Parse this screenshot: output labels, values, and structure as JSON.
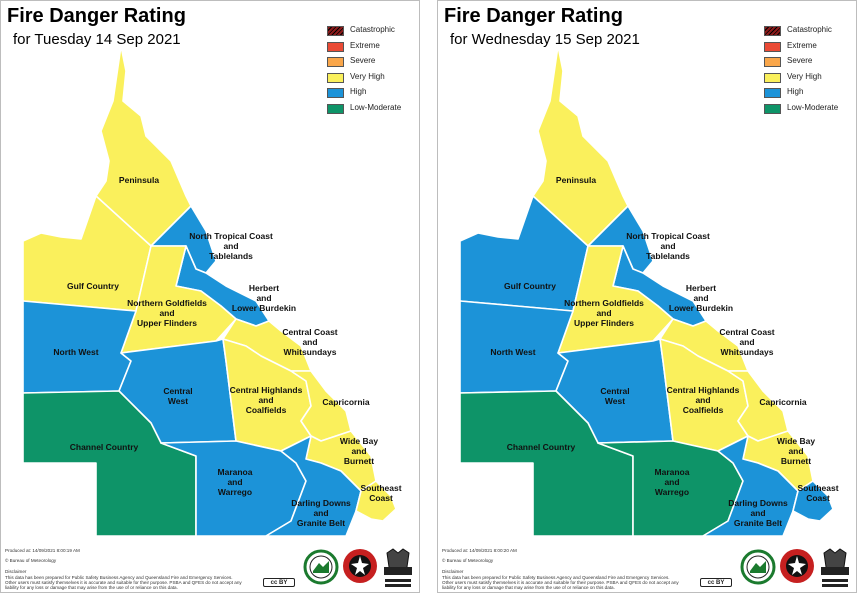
{
  "legend": [
    {
      "label": "Catastrophic",
      "color": "#8b1a1a",
      "hatched": true
    },
    {
      "label": "Extreme",
      "color": "#ea4a35"
    },
    {
      "label": "Severe",
      "color": "#f9a64a"
    },
    {
      "label": "Very High",
      "color": "#faf05c"
    },
    {
      "label": "High",
      "color": "#1c93d8"
    },
    {
      "label": "Low-Moderate",
      "color": "#0e9468"
    }
  ],
  "colors": {
    "very_high": "#faf05c",
    "high": "#1c93d8",
    "low_moderate": "#0e9468",
    "border": "#ffffff"
  },
  "panels": [
    {
      "title": "Fire Danger Rating",
      "subtitle": "for Tuesday 14 Sep 2021",
      "produced": "Produced at: 14/09/2021 8:00:19 AM",
      "copyright": "© Bureau of Meteorology",
      "disclaimer_title": "Disclaimer",
      "disclaimer": [
        "This data has been prepared for Public Safety Business Agency and Queensland Fire and Emergency Services.",
        "Other users must satisfy themselves it is accurate and suitable for their purpose. PSBA and QFES do not accept any",
        "liability for any loss or damage that may arise from the use of or reliance on this data."
      ],
      "regions": {
        "peninsula": {
          "name": "Peninsula",
          "rating": "Very High"
        },
        "gulf_country": {
          "name": "Gulf Country",
          "rating": "Very High"
        },
        "north_tropical_coast": {
          "name": "North Tropical Coast and Tablelands",
          "rating": "High"
        },
        "herbert_burdekin": {
          "name": "Herbert and Lower Burdekin",
          "rating": "High"
        },
        "northern_goldfields": {
          "name": "Northern Goldfields and Upper Flinders",
          "rating": "Very High"
        },
        "north_west": {
          "name": "North West",
          "rating": "High"
        },
        "central_coast": {
          "name": "Central Coast and Whitsundays",
          "rating": "Very High"
        },
        "central_west": {
          "name": "Central West",
          "rating": "High"
        },
        "central_highlands": {
          "name": "Central Highlands and Coalfields",
          "rating": "Very High"
        },
        "capricornia": {
          "name": "Capricornia",
          "rating": "Very High"
        },
        "channel_country": {
          "name": "Channel Country",
          "rating": "Low-Moderate"
        },
        "wide_bay": {
          "name": "Wide Bay and Burnett",
          "rating": "Very High"
        },
        "maranoa": {
          "name": "Maranoa and Warrego",
          "rating": "High"
        },
        "darling_downs": {
          "name": "Darling Downs and Granite Belt",
          "rating": "High"
        },
        "southeast_coast": {
          "name": "Southeast Coast",
          "rating": "Very High"
        }
      }
    },
    {
      "title": "Fire Danger Rating",
      "subtitle": "for Wednesday 15 Sep 2021",
      "produced": "Produced at: 14/09/2021 8:00:20 AM",
      "copyright": "© Bureau of Meteorology",
      "disclaimer_title": "Disclaimer",
      "disclaimer": [
        "This data has been prepared for Public Safety Business Agency and Queensland Fire and Emergency Services.",
        "Other users must satisfy themselves it is accurate and suitable for their purpose. PSBA and QFES do not accept any",
        "liability for any loss or damage that may arise from the use of or reliance on this data."
      ],
      "regions": {
        "peninsula": {
          "name": "Peninsula",
          "rating": "Very High"
        },
        "gulf_country": {
          "name": "Gulf Country",
          "rating": "High"
        },
        "north_tropical_coast": {
          "name": "North Tropical Coast and Tablelands",
          "rating": "High"
        },
        "herbert_burdekin": {
          "name": "Herbert and Lower Burdekin",
          "rating": "High"
        },
        "northern_goldfields": {
          "name": "Northern Goldfields and Upper Flinders",
          "rating": "Very High"
        },
        "north_west": {
          "name": "North West",
          "rating": "High"
        },
        "central_coast": {
          "name": "Central Coast and Whitsundays",
          "rating": "Very High"
        },
        "central_west": {
          "name": "Central West",
          "rating": "High"
        },
        "central_highlands": {
          "name": "Central Highlands and Coalfields",
          "rating": "Very High"
        },
        "capricornia": {
          "name": "Capricornia",
          "rating": "Very High"
        },
        "channel_country": {
          "name": "Channel Country",
          "rating": "Low-Moderate"
        },
        "wide_bay": {
          "name": "Wide Bay and Burnett",
          "rating": "Very High"
        },
        "maranoa": {
          "name": "Maranoa and Warrego",
          "rating": "Low-Moderate"
        },
        "darling_downs": {
          "name": "Darling Downs and Granite Belt",
          "rating": "High"
        },
        "southeast_coast": {
          "name": "Southeast Coast",
          "rating": "High"
        }
      }
    }
  ]
}
